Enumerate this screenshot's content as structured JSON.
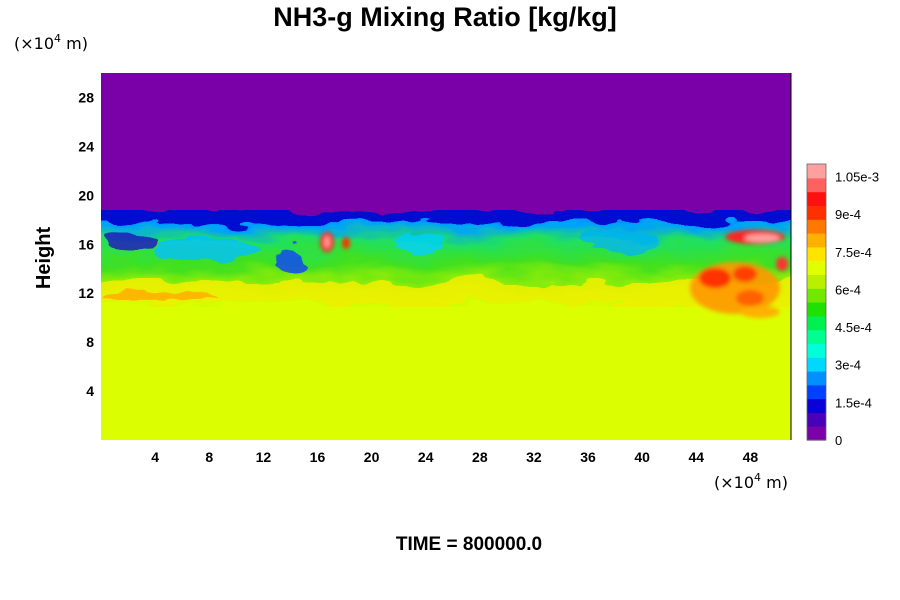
{
  "chart_data": {
    "type": "heatmap",
    "title": "NH3-g Mixing Ratio [kg/kg]",
    "ylabel": "Height",
    "x_unit": {
      "prefix": "(×10",
      "exponent": "4",
      "suffix": " m)"
    },
    "y_unit": {
      "prefix": "(×10",
      "exponent": "4",
      "suffix": " m)"
    },
    "xlim": [
      0,
      51
    ],
    "ylim": [
      0,
      30
    ],
    "x_ticks": [
      "4",
      "8",
      "12",
      "16",
      "20",
      "24",
      "28",
      "32",
      "36",
      "40",
      "44",
      "48"
    ],
    "y_ticks": [
      "4",
      "8",
      "12",
      "16",
      "20",
      "24",
      "28"
    ],
    "colorbar": {
      "min": 0,
      "max": 0.0011,
      "tick_labels": [
        "0",
        "1.5e-4",
        "3e-4",
        "4.5e-4",
        "6e-4",
        "7.5e-4",
        "9e-4",
        "1.05e-3"
      ],
      "tick_values": [
        0,
        0.00015,
        0.0003,
        0.00045,
        0.0006,
        0.00075,
        0.0009,
        0.00105
      ],
      "colors": [
        "#7b00a8",
        "#4a00b8",
        "#0a00d8",
        "#0040ff",
        "#0090ff",
        "#00d8ff",
        "#00ffd8",
        "#00ff90",
        "#00f050",
        "#20e000",
        "#70e800",
        "#b8f000",
        "#e0ff00",
        "#ffe400",
        "#ffb000",
        "#ff7800",
        "#ff3000",
        "#ff1010",
        "#ff6060",
        "#ffa0a0"
      ]
    },
    "fields": {
      "upper_layer_value": 0,
      "lower_layer_value": 0.00074,
      "mixing_zone_height_range": [
        11,
        18
      ],
      "hot_spot_x_ranges": [
        [
          16,
          18
        ],
        [
          44,
          51
        ]
      ]
    }
  },
  "footer": {
    "time_label": "TIME = 800000.0"
  }
}
